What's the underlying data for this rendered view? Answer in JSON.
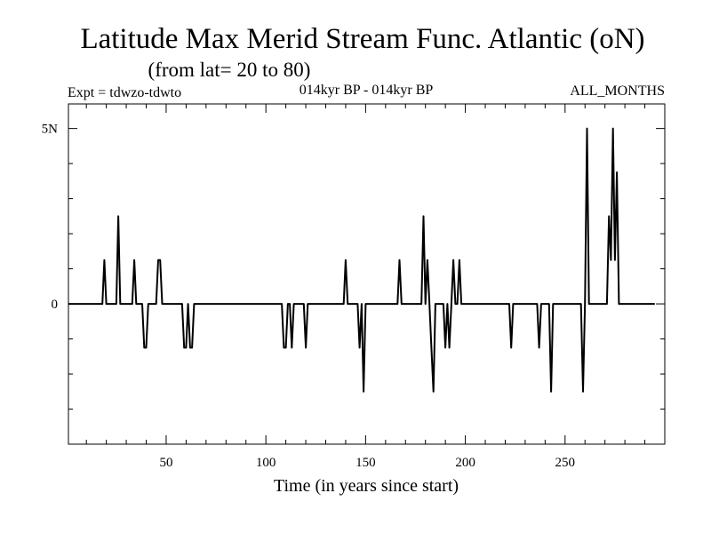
{
  "chart_data": {
    "type": "line",
    "title": "Latitude Max Merid Stream Func. Atlantic (oN)",
    "subtitle": "(from lat= 20 to 80)",
    "left_note": "Expt = tdwzo-tdwto",
    "center_note": "014kyr BP - 014kyr BP",
    "right_note": "ALL_MONTHS",
    "xlabel": "Time (in years since start)",
    "ylabel": "",
    "xlim": [
      1,
      300
    ],
    "ylim": [
      -4,
      5.7
    ],
    "x_ticks": [
      50,
      100,
      150,
      200,
      250
    ],
    "x_tick_labels": [
      "50",
      "100",
      "150",
      "200",
      "250"
    ],
    "y_ticks": [
      0,
      5
    ],
    "y_tick_labels": [
      "0",
      "5N"
    ],
    "grid": false,
    "legend": "none",
    "series": [
      {
        "color": "#000000",
        "x": [
          1,
          18,
          19,
          20,
          25,
          26,
          27,
          33,
          34,
          35,
          38,
          39,
          40,
          41,
          45,
          46,
          47,
          48,
          58,
          59,
          60,
          61,
          62,
          63,
          64,
          65,
          66,
          108,
          109,
          110,
          111,
          112,
          113,
          114,
          119,
          120,
          121,
          139,
          140,
          141,
          146,
          147,
          148,
          149,
          150,
          166,
          167,
          168,
          178,
          179,
          180,
          181,
          182,
          183,
          184,
          185,
          189,
          190,
          191,
          192,
          193,
          194,
          195,
          196,
          197,
          198,
          222,
          223,
          224,
          236,
          237,
          238,
          242,
          243,
          244,
          258,
          259,
          260,
          261,
          262,
          263,
          271,
          272,
          273,
          274,
          275,
          276,
          277,
          295
        ],
        "y": [
          0,
          0,
          1.25,
          0,
          0,
          2.5,
          0,
          0,
          1.25,
          0,
          0,
          -1.25,
          -1.25,
          0,
          0,
          1.25,
          1.25,
          0,
          0,
          -1.25,
          -1.25,
          0,
          -1.25,
          -1.25,
          0,
          0,
          0,
          0,
          -1.25,
          -1.25,
          0,
          0,
          -1.25,
          0,
          0,
          -1.25,
          0,
          0,
          1.25,
          0,
          0,
          -1.25,
          0,
          -2.5,
          0,
          0,
          1.25,
          0,
          0,
          2.5,
          0,
          1.25,
          0,
          -1.25,
          -2.5,
          0,
          0,
          -1.25,
          0,
          -1.25,
          0,
          1.25,
          0,
          0,
          1.25,
          0,
          0,
          -1.25,
          0,
          0,
          -1.25,
          0,
          0,
          -2.5,
          0,
          0,
          -2.5,
          0,
          5,
          0,
          0,
          0,
          2.5,
          1.25,
          5,
          1.25,
          3.75,
          0,
          0
        ]
      }
    ]
  }
}
